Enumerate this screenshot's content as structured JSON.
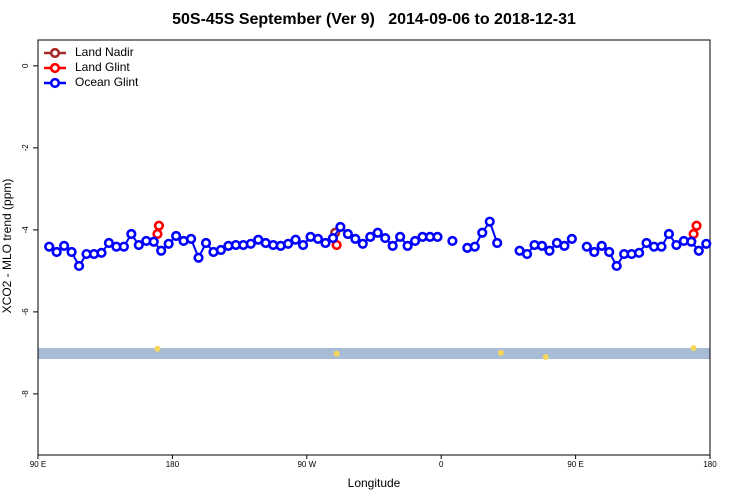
{
  "chart_data": {
    "type": "line",
    "title": "50S-45S September (Ver 9)   2014-09-06 to 2018-12-31",
    "x_label": "Longitude",
    "y_label": "XCO2 - MLO trend (ppm)",
    "xlim": [
      90,
      540
    ],
    "ylim": [
      -9.49,
      0.63
    ],
    "xticks": [
      {
        "value": 90,
        "label": "90 E"
      },
      180,
      {
        "value": 270,
        "label": "90 W"
      },
      {
        "value": 360,
        "label": "0"
      },
      {
        "value": 450,
        "label": "90 E"
      },
      180
    ],
    "yticks": [
      0,
      -2,
      -4,
      -6,
      -8
    ],
    "legend": "top-left",
    "band": {
      "ymin": -7.15,
      "ymax": -6.88,
      "color": "#a9bcd6"
    },
    "band_markers": {
      "color": "#f7d65c",
      "x": [
        170,
        290,
        400,
        430,
        529
      ],
      "values": [
        -6.9,
        -7.02,
        -7.0,
        -7.1,
        -6.88
      ]
    },
    "series": [
      {
        "name": "Land Nadir",
        "color": "#a52a2a",
        "x": [
          289
        ],
        "values": [
          -4.07
        ]
      },
      {
        "name": "Land Glint",
        "color": "#ff0000",
        "x": [
          170,
          171,
          null,
          290,
          null,
          529,
          531
        ],
        "values": [
          -4.1,
          -3.9,
          null,
          -4.37,
          null,
          -4.1,
          -3.9
        ]
      },
      {
        "name": "Ocean Glint",
        "color": "#0000ff",
        "x": [
          97.5,
          102.5,
          107.5,
          112.5,
          117.5,
          122.5,
          127.5,
          132.5,
          137.5,
          142.5,
          147.5,
          152.5,
          157.5,
          162.5,
          167.5,
          172.5,
          177.5,
          182.5,
          187.5,
          192.5,
          197.5,
          202.5,
          207.5,
          212.5,
          217.5,
          222.5,
          227.5,
          232.5,
          237.5,
          242.5,
          247.5,
          252.5,
          257.5,
          262.5,
          267.5,
          272.5,
          277.5,
          282.5,
          287.5,
          292.5,
          297.5,
          302.5,
          307.5,
          312.5,
          317.5,
          322.5,
          327.5,
          332.5,
          337.5,
          342.5,
          347.5,
          352.5,
          357.5,
          362.5,
          367.5,
          372.5,
          377.5,
          382.5,
          387.5,
          392.5,
          397.5,
          402.5,
          407.5,
          412.5,
          417.5,
          422.5,
          427.5,
          432.5,
          437.5,
          442.5,
          447.5,
          452.5,
          457.5,
          462.5,
          467.5,
          472.5,
          477.5,
          482.5,
          487.5,
          492.5,
          497.5,
          502.5,
          507.5,
          512.5,
          517.5,
          522.5,
          527.5,
          532.5,
          537.5
        ],
        "values": [
          -4.41,
          -4.54,
          -4.39,
          -4.54,
          -4.88,
          -4.59,
          -4.59,
          -4.56,
          -4.32,
          -4.41,
          -4.41,
          -4.1,
          -4.37,
          -4.27,
          -4.29,
          -4.51,
          -4.34,
          -4.15,
          -4.27,
          -4.22,
          -4.68,
          -4.32,
          -4.54,
          -4.49,
          -4.39,
          -4.37,
          -4.37,
          -4.34,
          -4.24,
          -4.32,
          -4.37,
          -4.39,
          -4.34,
          -4.24,
          -4.37,
          -4.17,
          -4.22,
          -4.32,
          -4.2,
          -3.93,
          -4.1,
          -4.22,
          -4.34,
          -4.17,
          -4.07,
          -4.2,
          -4.39,
          -4.17,
          -4.39,
          -4.27,
          -4.17,
          -4.17,
          -4.17,
          null,
          -4.27,
          null,
          -4.44,
          -4.41,
          -4.07,
          -3.8,
          -4.32,
          null,
          null,
          -4.51,
          -4.59,
          -4.37,
          -4.39,
          -4.51,
          -4.32,
          -4.39,
          -4.22,
          null,
          -4.41,
          -4.54,
          -4.39,
          -4.54,
          -4.88,
          -4.59,
          -4.59,
          -4.56,
          -4.32,
          -4.41,
          -4.41,
          -4.1,
          -4.37,
          -4.27,
          -4.29,
          -4.51,
          -4.34
        ]
      }
    ]
  }
}
